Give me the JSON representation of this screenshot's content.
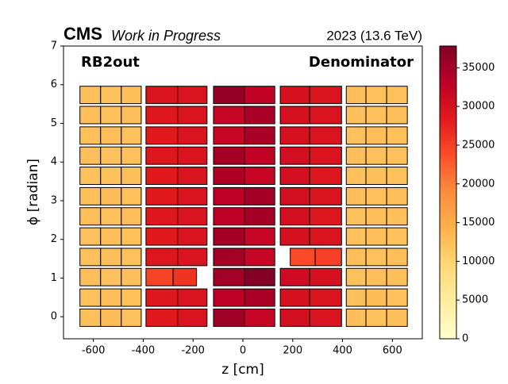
{
  "chart_data": {
    "type": "heatmap",
    "experiment": "CMS",
    "status": "Work in Progress",
    "run_label": "2023 (13.6 TeV)",
    "region_label": "RB2out",
    "quantity_label": "Denominator",
    "x_label": "z [cm]",
    "y_label": "ϕ [radian]",
    "xlim": [
      -720,
      720
    ],
    "ylim": [
      -0.57,
      7
    ],
    "xticks": [
      -600,
      -400,
      -200,
      0,
      200,
      400,
      600
    ],
    "yticks": [
      0,
      1,
      2,
      3,
      4,
      5,
      6,
      7
    ],
    "colormap": "YlOrRd",
    "clim": [
      0,
      37800
    ],
    "cticks": [
      0,
      5000,
      10000,
      15000,
      20000,
      25000,
      30000,
      35000
    ],
    "columns": [
      [
        -654,
        -571
      ],
      [
        -571,
        -488
      ],
      [
        -488,
        -408
      ],
      [
        -389,
        -262
      ],
      [
        -262,
        -144
      ],
      [
        -118,
        6
      ],
      [
        6,
        128
      ],
      [
        150,
        268
      ],
      [
        268,
        396
      ],
      [
        415,
        494
      ],
      [
        494,
        577
      ],
      [
        577,
        660
      ]
    ],
    "rows": [
      [
        -0.25,
        0.2
      ],
      [
        0.27,
        0.72
      ],
      [
        0.8,
        1.25
      ],
      [
        1.32,
        1.77
      ],
      [
        1.85,
        2.3
      ],
      [
        2.37,
        2.82
      ],
      [
        2.89,
        3.34
      ],
      [
        3.42,
        3.87
      ],
      [
        3.94,
        4.39
      ],
      [
        4.46,
        4.91
      ],
      [
        4.99,
        5.44
      ],
      [
        5.51,
        5.96
      ]
    ],
    "values": [
      [
        12500,
        12800,
        12300,
        28500,
        29500,
        35500,
        32000,
        30500,
        29500,
        12600,
        12400,
        12700
      ],
      [
        12400,
        12700,
        12500,
        29000,
        29500,
        33000,
        34500,
        30000,
        29500,
        12500,
        12800,
        12300
      ],
      [
        12600,
        12300,
        12500,
        null,
        null,
        35000,
        37500,
        31000,
        30000,
        12400,
        12600,
        12500
      ],
      [
        12500,
        12600,
        12400,
        29000,
        29500,
        35000,
        32000,
        null,
        null,
        12700,
        12400,
        12600
      ],
      [
        12300,
        12700,
        12500,
        28500,
        29500,
        35000,
        32000,
        30000,
        29500,
        12500,
        12600,
        12400
      ],
      [
        12600,
        12400,
        12700,
        29000,
        29500,
        33000,
        35000,
        30500,
        29000,
        12400,
        12700,
        12500
      ],
      [
        12500,
        12800,
        12400,
        28500,
        29500,
        33000,
        35000,
        30500,
        29500,
        12600,
        12400,
        12700
      ],
      [
        12400,
        12500,
        12700,
        28500,
        29500,
        34000,
        32000,
        30500,
        29000,
        12500,
        12700,
        12400
      ],
      [
        12700,
        12400,
        12500,
        29000,
        29500,
        35000,
        32500,
        30500,
        29500,
        12600,
        12500,
        12400
      ],
      [
        12500,
        12600,
        12400,
        28500,
        29500,
        32000,
        34500,
        30000,
        29500,
        12400,
        12600,
        12500
      ],
      [
        12600,
        12500,
        12700,
        29000,
        29500,
        32000,
        34500,
        30000,
        29500,
        12500,
        12400,
        12600
      ],
      [
        12500,
        12400,
        12600,
        29500,
        29500,
        36000,
        32500,
        30000,
        29500,
        12600,
        12500,
        12400
      ]
    ],
    "partial_cells": [
      {
        "x": [
          -389,
          -280
        ],
        "y": [
          0.8,
          1.25
        ],
        "value": 24500
      },
      {
        "x": [
          -280,
          -186
        ],
        "y": [
          0.8,
          1.25
        ],
        "value": 26000
      },
      {
        "x": [
          190,
          290
        ],
        "y": [
          1.32,
          1.77
        ],
        "value": 24000
      },
      {
        "x": [
          290,
          396
        ],
        "y": [
          1.32,
          1.77
        ],
        "value": 25000
      }
    ]
  }
}
